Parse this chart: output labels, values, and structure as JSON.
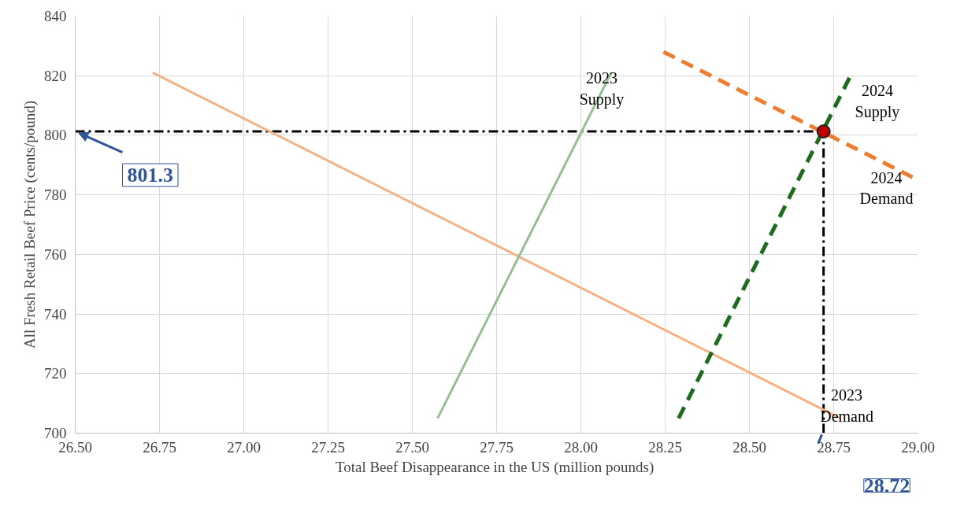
{
  "chart_data": {
    "type": "line",
    "xlabel": "Total Beef Disappearance  in the US (million pounds)",
    "ylabel": "All Fresh Retail Beef Price (cents/pound)",
    "xlim": [
      26.5,
      29.0
    ],
    "ylim": [
      700,
      840
    ],
    "xticks": [
      {
        "value": 26.5,
        "label": "26.50"
      },
      {
        "value": 26.75,
        "label": "26.75"
      },
      {
        "value": 27.0,
        "label": "27.00"
      },
      {
        "value": 27.25,
        "label": "27.25"
      },
      {
        "value": 27.5,
        "label": "27.50"
      },
      {
        "value": 27.75,
        "label": "27.75"
      },
      {
        "value": 28.0,
        "label": "28.00"
      },
      {
        "value": 28.25,
        "label": "28.25"
      },
      {
        "value": 28.5,
        "label": "28.50"
      },
      {
        "value": 28.75,
        "label": "28.75"
      },
      {
        "value": 29.0,
        "label": "29.00"
      }
    ],
    "yticks": [
      700,
      720,
      740,
      760,
      780,
      800,
      820,
      840
    ],
    "grid": true,
    "series": [
      {
        "name": "2023 Demand",
        "color": "#f4b183",
        "x": [
          26.73,
          28.77
        ],
        "values": [
          821,
          705
        ],
        "line_style": "solid"
      },
      {
        "name": "2023 Supply",
        "color": "#93c093",
        "x": [
          27.575,
          28.09
        ],
        "values": [
          705,
          821
        ],
        "line_style": "solid"
      },
      {
        "name": "2024 Demand",
        "color": "#ed7d31",
        "x": [
          28.245,
          29.0
        ],
        "values": [
          828,
          785
        ],
        "line_style": "dashed"
      },
      {
        "name": "2024 Supply",
        "color": "#1e6b1e",
        "x": [
          28.29,
          28.8
        ],
        "values": [
          705,
          820
        ],
        "line_style": "dashed"
      },
      {
        "type": "scatter",
        "color": "#c00000",
        "x": [
          28.72
        ],
        "values": [
          801.3
        ],
        "marker": "circle"
      }
    ],
    "ref_lines": [
      {
        "axis": "y",
        "value": 801.3,
        "label": "801.3",
        "color": "#000000"
      },
      {
        "axis": "x",
        "value": 28.72,
        "label": "28.72",
        "color": "#000000"
      }
    ]
  }
}
